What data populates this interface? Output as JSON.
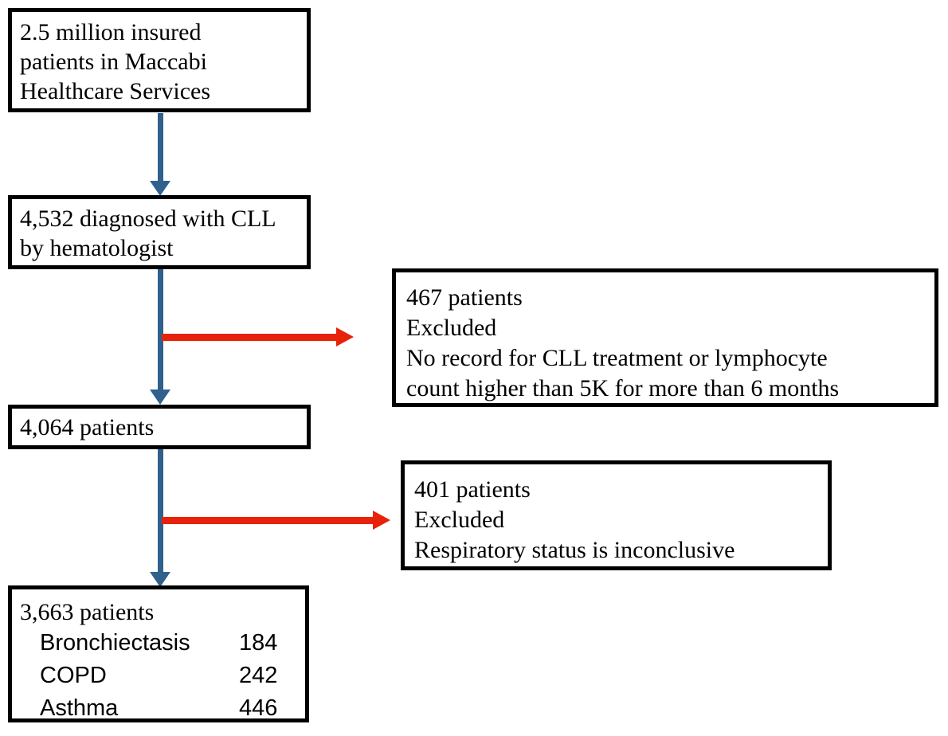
{
  "colors": {
    "background": "#FFFFFF",
    "box_border": "#000000",
    "arrow_blue": "#2F618C",
    "arrow_red": "#E8220A"
  },
  "flow": {
    "step1": {
      "lines": [
        "2.5 million insured",
        "patients in Maccabi",
        "Healthcare Services"
      ]
    },
    "step2": {
      "lines": [
        "4,532 diagnosed with CLL",
        "by hematologist"
      ]
    },
    "exclusion1": {
      "lines": [
        "467 patients",
        "Excluded",
        "No record for CLL treatment or lymphocyte",
        "count higher than 5K for more than 6 months"
      ]
    },
    "step3": {
      "lines": [
        "4,064 patients"
      ]
    },
    "exclusion2": {
      "lines": [
        "401 patients",
        "Excluded",
        "Respiratory status is inconclusive"
      ]
    },
    "step4": {
      "title": "3,663 patients",
      "breakdown": [
        {
          "label": "Bronchiectasis",
          "value": "184"
        },
        {
          "label": "COPD",
          "value": "242"
        },
        {
          "label": "Asthma",
          "value": "446"
        }
      ]
    }
  }
}
